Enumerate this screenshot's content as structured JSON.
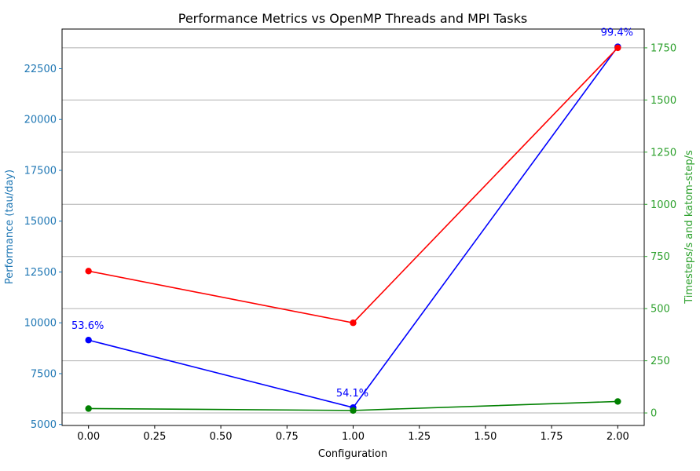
{
  "chart_data": {
    "type": "line",
    "title": "Performance Metrics vs OpenMP Threads and MPI Tasks",
    "xlabel": "Configuration",
    "ylabel_left": "Performance (tau/day)",
    "ylabel_right": "Timesteps/s and katom-step/s",
    "x": [
      0,
      1,
      2
    ],
    "xlim": [
      -0.1,
      2.1
    ],
    "xticks": [
      "0.00",
      "0.25",
      "0.50",
      "0.75",
      "1.00",
      "1.25",
      "1.50",
      "1.75",
      "2.00"
    ],
    "ylim_left": [
      4950,
      24450
    ],
    "yticks_left": [
      "5000",
      "7500",
      "10000",
      "12500",
      "15000",
      "17500",
      "20000",
      "22500"
    ],
    "ylim_right": [
      -60,
      1840
    ],
    "yticks_right": [
      "0",
      "250",
      "500",
      "750",
      "1000",
      "1250",
      "1500",
      "1750"
    ],
    "grid": "right-axis horizontal",
    "series": [
      {
        "axis": "left",
        "color": "#0000ff",
        "values": [
          9150,
          5830,
          23580
        ]
      },
      {
        "axis": "right",
        "color": "#ff0000",
        "values": [
          680,
          432,
          1750
        ]
      },
      {
        "axis": "right",
        "color": "#008000",
        "values": [
          21,
          12,
          55
        ]
      }
    ],
    "annotations": [
      {
        "text": "53.6%",
        "x": 0,
        "y": 9150,
        "color": "#0000ff"
      },
      {
        "text": "54.1%",
        "x": 1,
        "y": 5830,
        "color": "#0000ff"
      },
      {
        "text": "99.4%",
        "x": 2,
        "y": 23580,
        "color": "#0000ff"
      }
    ],
    "colors": {
      "left_axis": "#1f77b4",
      "right_axis": "#2ca02c",
      "grid": "#b0b0b0"
    }
  }
}
